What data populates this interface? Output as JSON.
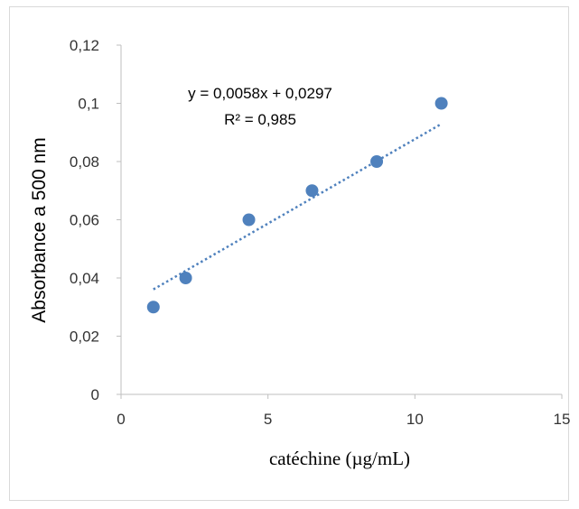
{
  "chart_data": {
    "type": "scatter",
    "title": "",
    "xlabel": "catéchine (µg/mL)",
    "ylabel": "Absorbance a  500 nm",
    "xlim": [
      0,
      15
    ],
    "ylim": [
      0,
      0.12
    ],
    "x_ticks": [
      "0",
      "5",
      "10",
      "15"
    ],
    "y_ticks": [
      "0",
      "0,02",
      "0,04",
      "0,06",
      "0,08",
      "0,1",
      "0,12"
    ],
    "grid": false,
    "legend": "none",
    "series": [
      {
        "x": [
          1.1,
          2.2,
          4.35,
          6.5,
          8.7,
          10.9
        ],
        "y": [
          0.03,
          0.04,
          0.06,
          0.07,
          0.08,
          0.1
        ],
        "color": "#4f81bd"
      }
    ],
    "trendline": {
      "type": "linear",
      "slope": 0.0058,
      "intercept": 0.0297,
      "x_range": [
        1.1,
        10.9
      ],
      "style": "dotted",
      "color": "#4f81bd",
      "equation": "y = 0,0058x + 0,0297",
      "r_squared": "R² = 0,985"
    }
  }
}
